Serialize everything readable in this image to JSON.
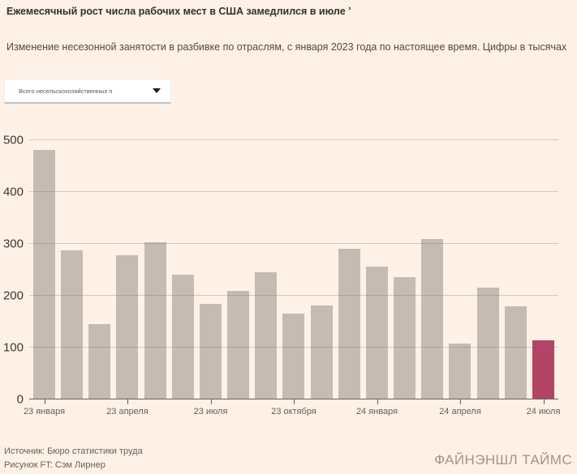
{
  "header": {
    "title": "Ежемесячный рост числа рабочих мест в США замедлился в июле ʼ",
    "subtitle": "Изменение несезонной занятости в разбивке по отраслям, с января 2023 года по настоящее время. Цифры в тысячах"
  },
  "controls": {
    "industry_dropdown": {
      "value": "Всего несельскохозяйственных п",
      "caret_icon": "chevron-down"
    }
  },
  "chart_data": {
    "type": "bar",
    "title": "Ежемесячный рост числа рабочих мест в США замедлился в июле",
    "values": [
      482,
      287,
      146,
      278,
      303,
      240,
      184,
      210,
      246,
      165,
      182,
      290,
      256,
      236,
      310,
      108,
      216,
      179,
      114
    ],
    "highlight_index": 18,
    "x_tick_indices": [
      0,
      3,
      6,
      9,
      12,
      15,
      18
    ],
    "x_tick_labels": [
      "23 января",
      "23 апреля",
      "23 июля",
      "23 октября",
      "24 января",
      "24 апреля",
      "24 июля"
    ],
    "yticks": [
      0,
      100,
      200,
      300,
      400,
      500
    ],
    "ylim": [
      0,
      500
    ],
    "xlabel": "",
    "ylabel": "",
    "grid": true,
    "legend": "none",
    "bar_color": "#c6bbb2",
    "highlight_color": "#b44466",
    "background_color": "#fff1e5"
  },
  "footer": {
    "source": "Источник: Бюро статистики труда",
    "credit": "Рисунок FT: Сэм Лирнер",
    "brand": "ФАЙНЭНШЛ ТАЙМС"
  }
}
